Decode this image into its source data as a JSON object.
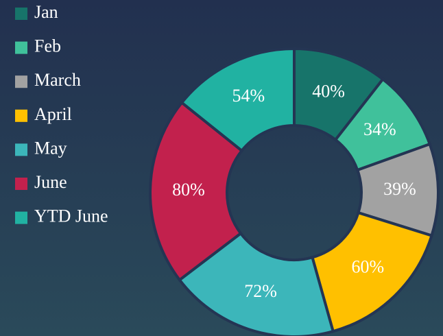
{
  "chart_data": {
    "type": "donut",
    "categories": [
      "Jan",
      "Feb",
      "March",
      "April",
      "May",
      "June",
      "YTD June"
    ],
    "values": [
      40,
      34,
      39,
      60,
      72,
      80,
      54
    ],
    "value_labels": [
      "40%",
      "34%",
      "39%",
      "60%",
      "72%",
      "80%",
      "54%"
    ],
    "colors": [
      "#17746a",
      "#40c19b",
      "#a2a2a2",
      "#ffc000",
      "#3cb6ba",
      "#c2214d",
      "#21b2a2"
    ],
    "legend": "left"
  }
}
